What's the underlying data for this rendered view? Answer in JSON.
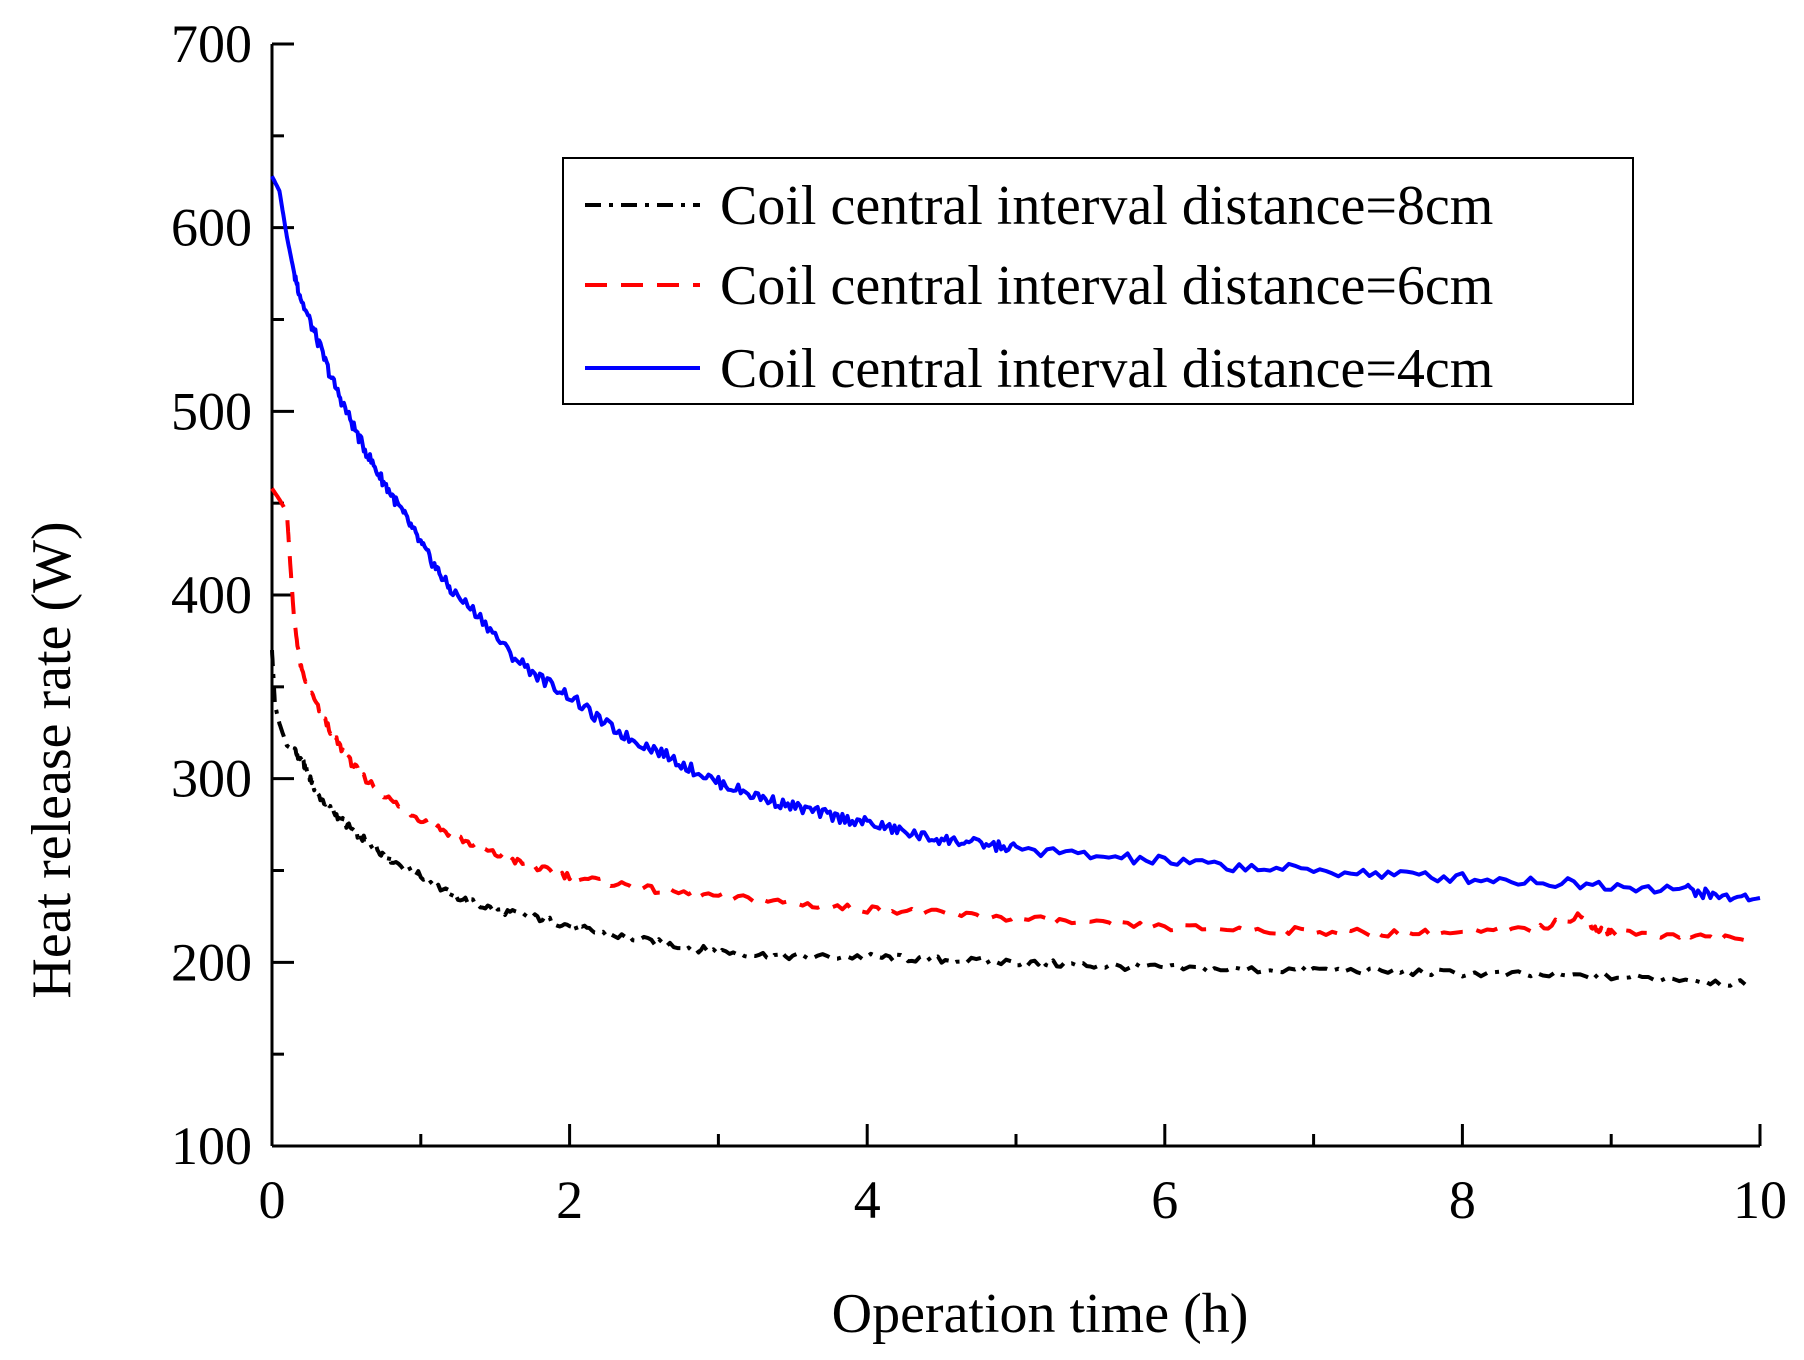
{
  "chart_data": {
    "type": "line",
    "title": "",
    "xlabel": "Operation time  (h)",
    "ylabel": "Heat release rate (W)",
    "xlim": [
      0,
      10
    ],
    "ylim": [
      100,
      700
    ],
    "x_major_ticks": [
      0,
      2,
      4,
      6,
      8,
      10
    ],
    "x_tick_labels": [
      "0",
      "2",
      "4",
      "6",
      "8",
      "10"
    ],
    "y_major_ticks": [
      100,
      200,
      300,
      400,
      500,
      600,
      700
    ],
    "y_tick_labels": [
      "100",
      "200",
      "300",
      "400",
      "500",
      "600",
      "700"
    ],
    "grid": false,
    "legend_position": "top-right",
    "series": [
      {
        "name": "Coil central interval distance=8cm",
        "color": "#000000",
        "style": "dash-dot",
        "x": [
          0,
          0.02,
          0.05,
          0.1,
          0.15,
          0.2,
          0.25,
          0.3,
          0.4,
          0.5,
          0.6,
          0.7,
          0.8,
          1.0,
          1.2,
          1.4,
          1.6,
          1.8,
          2.0,
          2.2,
          2.5,
          2.8,
          3.0,
          3.3,
          3.6,
          4.0,
          4.3,
          4.6,
          5.0,
          5.3,
          5.6,
          6.0,
          6.5,
          7.0,
          7.5,
          8.0,
          8.5,
          9.0,
          9.5,
          9.9
        ],
        "y": [
          370,
          340,
          330,
          318,
          315,
          310,
          302,
          292,
          283,
          275,
          268,
          262,
          256,
          247,
          237,
          231,
          227,
          224,
          220,
          216,
          212,
          208,
          206,
          204,
          203,
          203,
          202,
          201,
          200,
          199,
          198,
          197,
          196,
          196,
          195,
          194,
          193,
          192,
          191,
          188
        ]
      },
      {
        "name": "Coil central interval distance=6cm",
        "color": "#ff0000",
        "style": "dashed",
        "x": [
          0,
          0.05,
          0.1,
          0.12,
          0.15,
          0.2,
          0.3,
          0.4,
          0.5,
          0.6,
          0.8,
          1.0,
          1.2,
          1.4,
          1.6,
          1.8,
          2.0,
          2.3,
          2.6,
          3.0,
          3.4,
          3.8,
          4.2,
          4.6,
          5.0,
          5.5,
          6.0,
          6.5,
          7.0,
          7.5,
          8.0,
          8.5,
          8.8,
          8.9,
          9.0,
          9.5,
          9.9
        ],
        "y": [
          458,
          452,
          445,
          420,
          385,
          358,
          340,
          325,
          312,
          302,
          288,
          278,
          270,
          262,
          256,
          251,
          247,
          243,
          239,
          236,
          233,
          230,
          228,
          226,
          224,
          221,
          219,
          218,
          217,
          216,
          216,
          218,
          226,
          218,
          216,
          215,
          212
        ]
      },
      {
        "name": "Coil central interval distance=4cm",
        "color": "#0000ff",
        "style": "solid",
        "x": [
          0,
          0.05,
          0.1,
          0.15,
          0.2,
          0.3,
          0.4,
          0.5,
          0.6,
          0.7,
          0.8,
          0.9,
          1.0,
          1.1,
          1.2,
          1.4,
          1.6,
          1.8,
          2.0,
          2.2,
          2.4,
          2.6,
          2.8,
          3.0,
          3.2,
          3.4,
          3.6,
          3.8,
          4.0,
          4.2,
          4.4,
          4.6,
          4.8,
          5.0,
          5.5,
          6.0,
          6.5,
          7.0,
          7.5,
          8.0,
          8.5,
          9.0,
          9.5,
          9.7,
          10.0
        ],
        "y": [
          628,
          620,
          595,
          575,
          560,
          540,
          518,
          500,
          483,
          468,
          455,
          442,
          428,
          415,
          403,
          388,
          368,
          355,
          345,
          332,
          322,
          315,
          306,
          298,
          292,
          287,
          283,
          279,
          276,
          272,
          268,
          266,
          264,
          262,
          258,
          255,
          252,
          250,
          248,
          246,
          244,
          242,
          240,
          236,
          235
        ]
      }
    ]
  }
}
